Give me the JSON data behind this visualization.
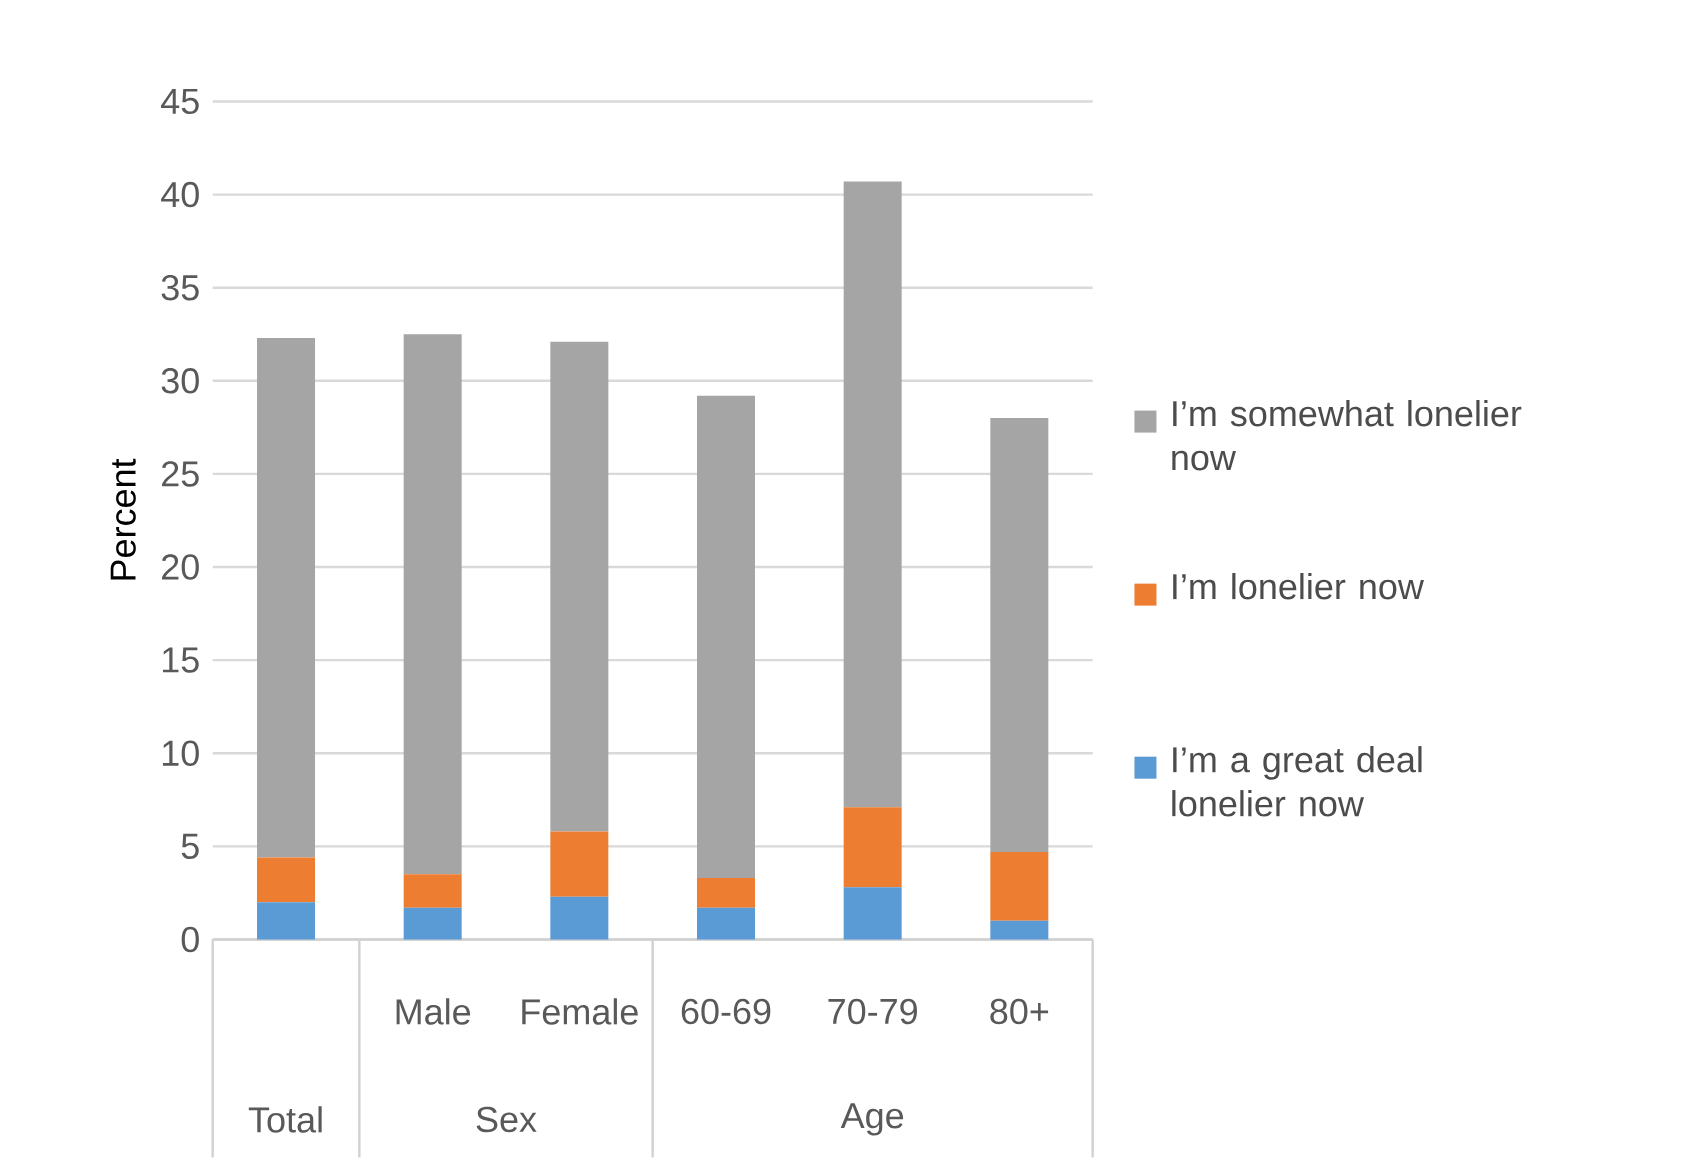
{
  "chart_data": {
    "type": "bar",
    "stacked": true,
    "ylabel": "Percent",
    "categories": [
      null,
      "Male",
      "Female",
      "60-69",
      "70-79",
      "80+"
    ],
    "series": [
      {
        "name": "I’m a great deal lonelier now",
        "color": "#5b9bd5",
        "values": [
          2.0,
          1.7,
          2.3,
          1.7,
          2.8,
          1.0
        ]
      },
      {
        "name": "I’m lonelier now",
        "color": "#ed7d31",
        "values": [
          2.4,
          1.8,
          3.5,
          1.6,
          4.3,
          3.7
        ]
      },
      {
        "name": "I’m somewhat lonelier now",
        "color": "#a5a5a5",
        "values": [
          27.9,
          29.0,
          26.3,
          25.9,
          33.6,
          23.3
        ]
      }
    ],
    "ylim": [
      0,
      45
    ],
    "yticks": [
      0,
      5,
      10,
      15,
      20,
      25,
      30,
      35,
      40,
      45
    ],
    "grid": "y",
    "legend": "right",
    "annotations": [
      "Total",
      "Sex",
      "Age"
    ]
  }
}
